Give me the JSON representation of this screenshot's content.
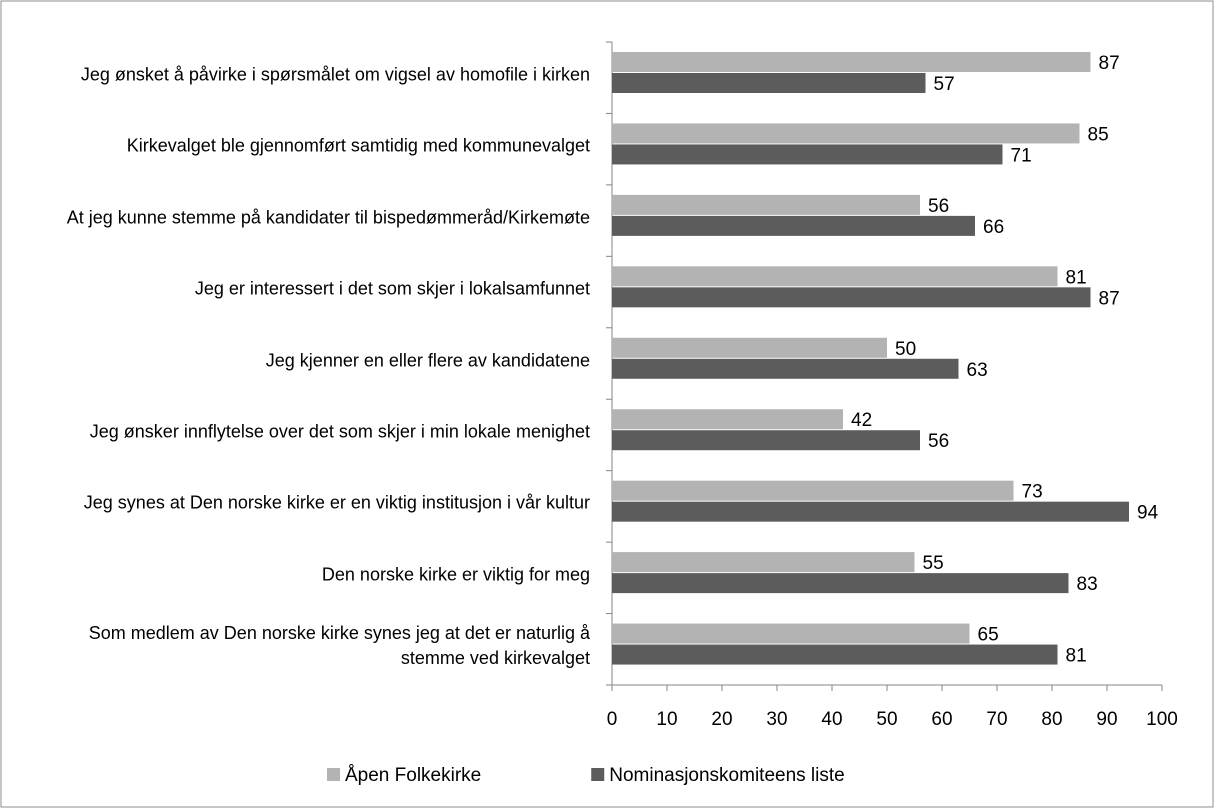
{
  "chart_data": {
    "type": "bar",
    "orientation": "horizontal",
    "categories": [
      "Jeg ønsket å påvirke i spørsmålet om vigsel av homofile i kirken",
      "Kirkevalget ble gjennomført samtidig med kommunevalget",
      "At jeg kunne stemme på kandidater til bispedømmeråd/Kirkemøte",
      "Jeg er interessert i det som skjer i lokalsamfunnet",
      "Jeg kjenner en eller flere av kandidatene",
      "Jeg ønsker innflytelse over det som skjer i min lokale menighet",
      "Jeg synes at Den norske kirke er en viktig institusjon i vår kultur",
      "Den norske kirke er viktig for meg",
      "Som medlem av Den norske kirke synes jeg at det er naturlig å stemme ved kirkevalget"
    ],
    "series": [
      {
        "name": "Åpen Folkekirke",
        "color": "#b3b3b3",
        "values": [
          87,
          85,
          56,
          81,
          50,
          42,
          73,
          55,
          65
        ]
      },
      {
        "name": "Nominasjonskomiteens liste",
        "color": "#5c5c5c",
        "values": [
          57,
          71,
          66,
          87,
          63,
          56,
          94,
          83,
          81
        ]
      }
    ],
    "xlim": [
      0,
      100
    ],
    "xticks": [
      0,
      10,
      20,
      30,
      40,
      50,
      60,
      70,
      80,
      90,
      100
    ],
    "legend": "bottom"
  }
}
